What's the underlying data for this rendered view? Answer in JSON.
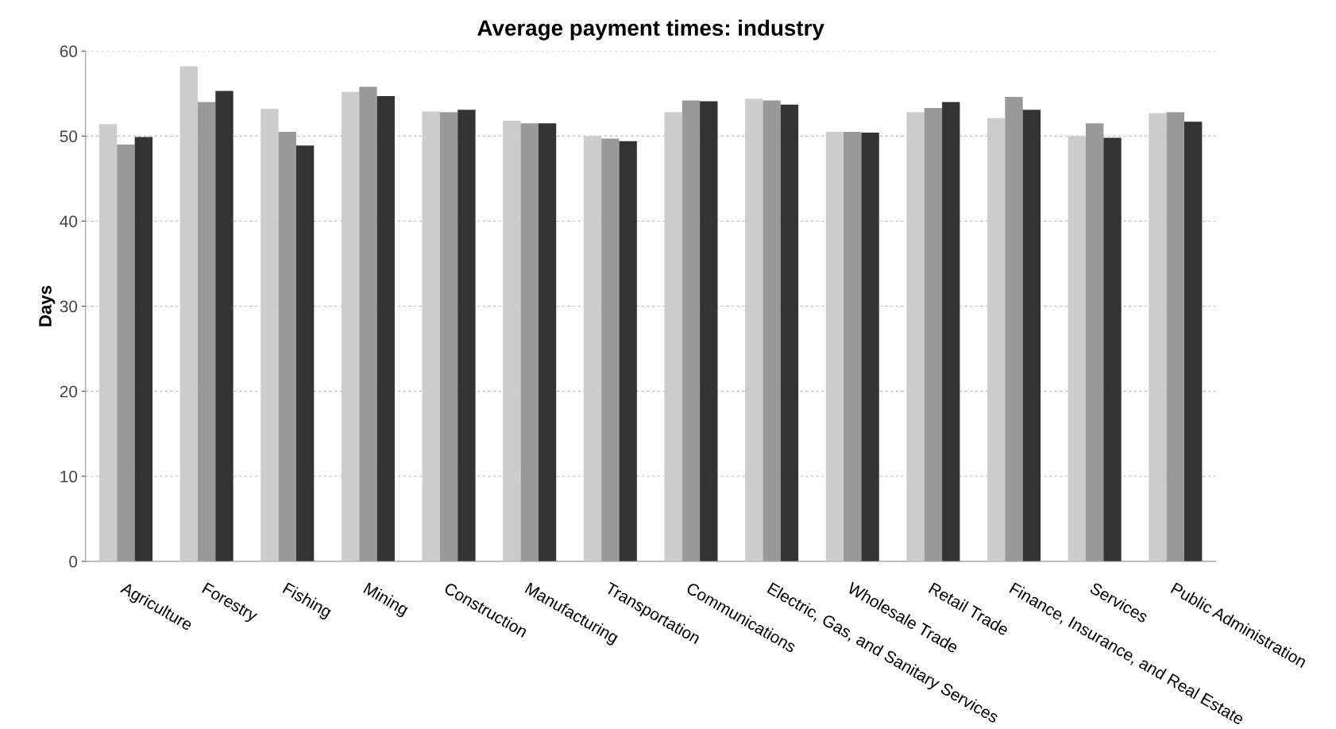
{
  "chart_data": {
    "type": "bar",
    "title": "Average payment times: industry",
    "ylabel": "Days",
    "categories": [
      "Agriculture",
      "Forestry",
      "Fishing",
      "Mining",
      "Construction",
      "Manufacturing",
      "Transportation",
      "Communications",
      "Electric, Gas, and Sanitary Services",
      "Wholesale Trade",
      "Retail Trade",
      "Finance, Insurance, and Real Estate",
      "Services",
      "Public Administration"
    ],
    "series": [
      {
        "color": "#cccccc",
        "values": [
          51.4,
          58.2,
          53.2,
          55.2,
          52.9,
          51.8,
          50.0,
          52.8,
          54.4,
          50.5,
          52.8,
          52.1,
          50.0,
          52.7
        ]
      },
      {
        "color": "#999999",
        "values": [
          49.0,
          54.0,
          50.5,
          55.8,
          52.8,
          51.5,
          49.7,
          54.2,
          54.2,
          50.5,
          53.3,
          54.6,
          51.5,
          52.8
        ]
      },
      {
        "color": "#333333",
        "values": [
          49.9,
          55.3,
          48.9,
          54.7,
          53.1,
          51.5,
          49.4,
          54.1,
          53.7,
          50.4,
          54.0,
          53.1,
          49.8,
          51.7
        ]
      }
    ],
    "ylim": [
      0,
      60
    ],
    "yticks": [
      0,
      10,
      20,
      30,
      40,
      50,
      60
    ],
    "grid": "y",
    "legend": false
  }
}
